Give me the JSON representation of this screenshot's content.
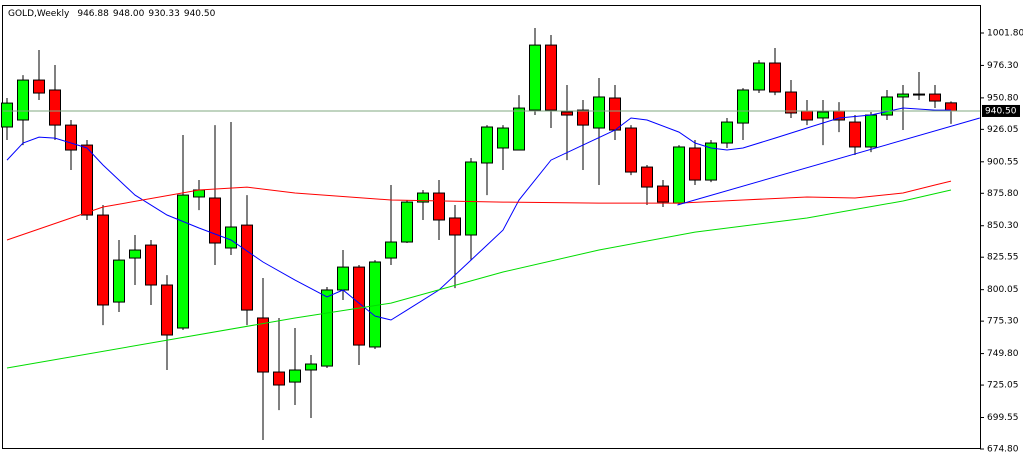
{
  "chart_data": {
    "type": "candlestick",
    "title": "GOLD,Weekly",
    "header_values": [
      "946.88",
      "948.00",
      "930.33",
      "940.50"
    ],
    "open": [
      927.9,
      933.4,
      964.8,
      957.0,
      929.4,
      913.7,
      858.7,
      790.3,
      824.9,
      835.1,
      803.7,
      769.9,
      872.9,
      872.1,
      832.8,
      850.8,
      777.8,
      735.3,
      727.4,
      736.9,
      740.0,
      799.8,
      817.8,
      755.0,
      824.9,
      837.5,
      868.9,
      876.0,
      856.4,
      843.0,
      899.6,
      911.4,
      909.8,
      941.2,
      992.3,
      939.7,
      941.2,
      927.1,
      950.7,
      927.1,
      896.4,
      881.5,
      868.1,
      911.4,
      886.2,
      915.3,
      931.0,
      957.0,
      978.2,
      955.4,
      940.5,
      935.0,
      940.5,
      931.8,
      912.2,
      937.3,
      951.5,
      953.8,
      953.8,
      946.88
    ],
    "high": [
      950.7,
      968.7,
      988.4,
      976.6,
      933.4,
      917.7,
      866.6,
      839.1,
      843.0,
      839.1,
      811.5,
      921.6,
      886.2,
      929.4,
      931.8,
      874.4,
      809.2,
      777.8,
      769.9,
      748.7,
      802.1,
      831.2,
      819.4,
      823.3,
      882.3,
      870.5,
      878.4,
      886.2,
      866.6,
      903.5,
      929.4,
      929.4,
      953.0,
      1005.7,
      1000.2,
      960.9,
      949.1,
      966.4,
      960.9,
      929.4,
      898.0,
      886.2,
      913.7,
      917.7,
      917.7,
      935.0,
      958.5,
      980.5,
      990.0,
      964.8,
      949.1,
      949.1,
      947.5,
      937.3,
      939.7,
      957.0,
      960.9,
      971.1,
      960.9,
      948.0
    ],
    "low": [
      917.7,
      913.7,
      949.1,
      917.7,
      894.1,
      854.8,
      772.2,
      782.5,
      803.7,
      788.0,
      736.9,
      768.3,
      862.6,
      819.4,
      827.3,
      772.2,
      681.9,
      705.4,
      709.4,
      699.2,
      738.5,
      791.9,
      740.8,
      753.4,
      819.4,
      836.7,
      854.8,
      839.1,
      801.3,
      823.3,
      874.4,
      894.1,
      909.8,
      937.3,
      927.1,
      901.9,
      894.1,
      882.3,
      917.7,
      890.1,
      866.6,
      865.0,
      866.6,
      882.3,
      884.6,
      911.4,
      917.7,
      954.6,
      953.0,
      935.0,
      929.4,
      913.7,
      923.9,
      905.9,
      908.2,
      933.4,
      925.5,
      949.1,
      942.8,
      930.33
    ],
    "close": [
      946.7,
      964.8,
      954.6,
      929.4,
      909.8,
      858.7,
      788.0,
      823.3,
      831.2,
      803.7,
      764.4,
      874.4,
      878.4,
      836.7,
      849.3,
      784.0,
      735.3,
      725.1,
      736.9,
      741.6,
      799.8,
      817.8,
      756.5,
      821.8,
      837.5,
      868.9,
      876.0,
      854.8,
      843.0,
      900.4,
      927.9,
      927.1,
      942.8,
      992.3,
      941.2,
      937.3,
      929.4,
      951.5,
      925.5,
      892.5,
      880.7,
      868.9,
      912.2,
      886.2,
      915.3,
      931.8,
      957.0,
      978.2,
      955.4,
      938.9,
      933.4,
      939.7,
      933.4,
      912.2,
      937.3,
      951.5,
      953.8,
      953.8,
      948.3,
      940.5
    ],
    "up_color": "#00ff00",
    "down_color": "#ff0000",
    "last_price_line_color": "#80a880",
    "lines": [
      {
        "color": "#0000ff",
        "x": [
          0,
          1,
          2,
          3,
          4,
          5,
          6,
          8,
          10,
          12,
          14,
          16,
          18,
          20,
          21,
          22,
          23,
          24,
          25,
          27,
          29,
          30,
          31,
          32,
          34,
          36,
          38,
          39,
          40,
          42,
          43,
          44,
          45,
          46,
          48,
          50,
          52,
          54,
          56,
          58,
          59
        ],
        "values": [
          901.9,
          915.3,
          920.0,
          919.2,
          915.3,
          911.4,
          898.0,
          874.4,
          858.7,
          848.5,
          839.1,
          821.8,
          807.6,
          794.3,
          799.8,
          789.5,
          779.3,
          776.2,
          784.0,
          799.8,
          823.3,
          835.1,
          846.9,
          870.5,
          901.9,
          913.7,
          925.5,
          935.0,
          933.4,
          923.9,
          915.3,
          911.4,
          909.8,
          911.4,
          919.2,
          927.1,
          935.0,
          937.3,
          942.8,
          941.2,
          941.2
        ]
      },
      {
        "color": "#ff0000",
        "x": [
          0,
          6,
          12,
          15,
          18,
          24,
          31,
          37,
          42,
          46,
          50,
          53,
          56,
          58,
          59
        ],
        "values": [
          839.1,
          865.0,
          878.4,
          880.7,
          876.0,
          870.5,
          868.9,
          868.1,
          868.1,
          870.5,
          872.9,
          872.1,
          876.0,
          882.3,
          885.4
        ]
      },
      {
        "color": "#00dd00",
        "x": [
          0,
          18,
          24,
          31,
          37,
          43,
          50,
          56,
          59
        ],
        "values": [
          738.5,
          777.8,
          789.5,
          813.9,
          831.2,
          845.3,
          856.4,
          869.7,
          878.4
        ]
      },
      {
        "color": "#0000ff",
        "x": [
          41.9,
          60.8
        ],
        "values": [
          866.6,
          935.0
        ]
      }
    ],
    "ylim": [
      674.8,
      1023.8
    ],
    "yticks": [
      {
        "value": 1001.8,
        "label": "1001.80"
      },
      {
        "value": 976.3,
        "label": "976.30"
      },
      {
        "value": 950.8,
        "label": "950.80"
      },
      926.05,
      900.55,
      {
        "value": 875.8,
        "label": "875.80"
      },
      {
        "value": 850.3,
        "label": "850.30"
      },
      825.55,
      800.05,
      {
        "value": 775.3,
        "label": "775.30"
      },
      {
        "value": 749.8,
        "label": "749.80"
      },
      725.05,
      699.55,
      {
        "value": 674.8,
        "label": "674.80"
      }
    ]
  }
}
